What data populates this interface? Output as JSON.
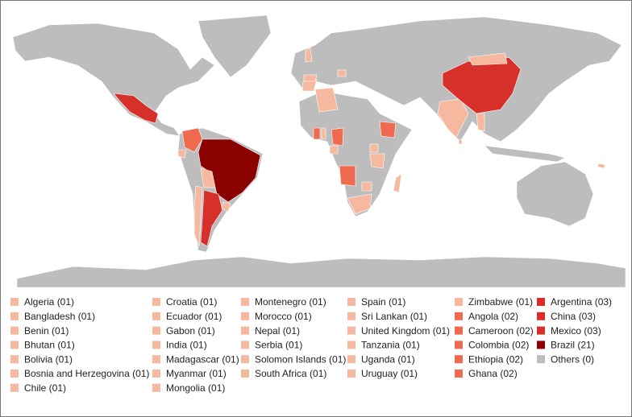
{
  "legend": {
    "columns": [
      [
        {
          "label": "Algeria (01)",
          "color": "#f6b9a0"
        },
        {
          "label": "Bangladesh (01)",
          "color": "#f6b9a0"
        },
        {
          "label": "Benin (01)",
          "color": "#f6b9a0"
        },
        {
          "label": "Bhutan (01)",
          "color": "#f6b9a0"
        },
        {
          "label": "Bolivia (01)",
          "color": "#f6b9a0"
        },
        {
          "label": "Bosnia and Herzegovina (01)",
          "color": "#f6b9a0"
        },
        {
          "label": "Chile (01)",
          "color": "#f6b9a0"
        }
      ],
      [
        {
          "label": "Croatia (01)",
          "color": "#f6b9a0"
        },
        {
          "label": "Ecuador (01)",
          "color": "#f6b9a0"
        },
        {
          "label": "Gabon (01)",
          "color": "#f6b9a0"
        },
        {
          "label": "India (01)",
          "color": "#f6b9a0"
        },
        {
          "label": "Madagascar (01)",
          "color": "#f6b9a0"
        },
        {
          "label": "Myanmar (01)",
          "color": "#f6b9a0"
        },
        {
          "label": "Mongolia (01)",
          "color": "#f6b9a0"
        }
      ],
      [
        {
          "label": "Montenegro (01)",
          "color": "#f6b9a0"
        },
        {
          "label": "Morocco (01)",
          "color": "#f6b9a0"
        },
        {
          "label": "Nepal (01)",
          "color": "#f6b9a0"
        },
        {
          "label": "Serbia (01)",
          "color": "#f6b9a0"
        },
        {
          "label": "Solomon Islands (01)",
          "color": "#f6b9a0"
        },
        {
          "label": "South Africa (01)",
          "color": "#f6b9a0"
        }
      ],
      [
        {
          "label": "Spain (01)",
          "color": "#f6b9a0"
        },
        {
          "label": "Sri Lankan (01)",
          "color": "#f6b9a0"
        },
        {
          "label": "United Kingdom (01)",
          "color": "#f6b9a0"
        },
        {
          "label": "Tanzania (01)",
          "color": "#f6b9a0"
        },
        {
          "label": "Uganda (01)",
          "color": "#f6b9a0"
        },
        {
          "label": "Uruguay (01)",
          "color": "#f6b9a0"
        }
      ],
      [
        {
          "label": "Zimbabwe (01)",
          "color": "#f6b9a0"
        },
        {
          "label": "Angola (02)",
          "color": "#ef6a4f"
        },
        {
          "label": "Cameroon (02)",
          "color": "#ef6a4f"
        },
        {
          "label": "Colombia (02)",
          "color": "#ef6a4f"
        },
        {
          "label": "Ethiopia (02)",
          "color": "#ef6a4f"
        },
        {
          "label": "Ghana (02)",
          "color": "#ef6a4f"
        }
      ],
      [
        {
          "label": "Argentina (03)",
          "color": "#d7302b"
        },
        {
          "label": "China (03)",
          "color": "#d7302b"
        },
        {
          "label": "Mexico (03)",
          "color": "#d7302b"
        },
        {
          "label": "Brazil (21)",
          "color": "#8b0000"
        },
        {
          "label": "Others (0)",
          "color": "#bdbdbd"
        }
      ]
    ]
  }
}
